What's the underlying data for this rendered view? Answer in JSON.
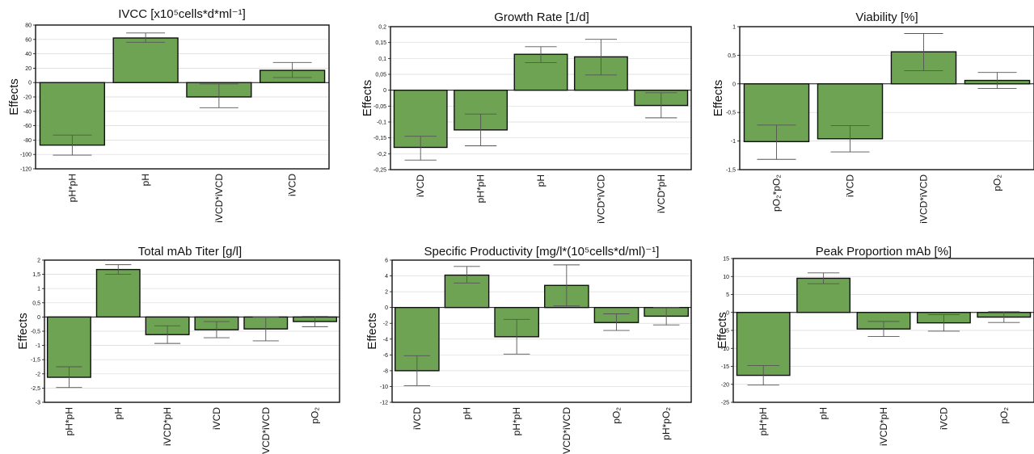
{
  "chart_data": [
    {
      "type": "bar",
      "title": "IVCC [x10⁵cells*d*ml⁻¹]",
      "ylabel": "Effects",
      "ylim": [
        -120,
        80
      ],
      "yticks": [
        80,
        60,
        40,
        20,
        0,
        -20,
        -40,
        -60,
        -80,
        -100,
        -120
      ],
      "categories": [
        "pH*pH",
        "pH",
        "iVCD*iVCD",
        "iVCD"
      ],
      "values": [
        -87,
        62,
        -20,
        17
      ],
      "error_low": [
        -101,
        56,
        -35,
        7
      ],
      "error_high": [
        -73,
        69,
        -2,
        28
      ],
      "grid": true
    },
    {
      "type": "bar",
      "title": "Growth Rate [1/d]",
      "ylabel": "Effects",
      "ylim": [
        -0.25,
        0.2
      ],
      "yticks": [
        "0,2",
        "0,15",
        "0,1",
        "0,05",
        "0",
        "-0,05",
        "-0,1",
        "-0,15",
        "-0,2",
        "-0,25"
      ],
      "categories": [
        "iVCD",
        "pH*pH",
        "pH",
        "iVCD*iVCD",
        "iVCD*pH"
      ],
      "values": [
        -0.18,
        -0.125,
        0.113,
        0.105,
        -0.048
      ],
      "error_low": [
        -0.22,
        -0.175,
        0.087,
        0.048,
        -0.087
      ],
      "error_high": [
        -0.145,
        -0.075,
        0.137,
        0.16,
        -0.008
      ],
      "grid": true
    },
    {
      "type": "bar",
      "title": "Viability [%]",
      "ylabel": "Effects",
      "ylim": [
        -1.5,
        1
      ],
      "yticks": [
        "1",
        "0,5",
        "0",
        "-0,5",
        "-1",
        "-1,5"
      ],
      "categories": [
        "pO₂*pO₂",
        "iVCD",
        "iVCD*iVCD",
        "pO₂"
      ],
      "values": [
        -1.01,
        -0.96,
        0.56,
        0.06
      ],
      "error_low": [
        -1.32,
        -1.19,
        0.23,
        -0.08
      ],
      "error_high": [
        -0.72,
        -0.73,
        0.88,
        0.2
      ],
      "grid": true
    },
    {
      "type": "bar",
      "title": "Total mAb Titer [g/l]",
      "ylabel": "Effects",
      "ylim": [
        -3,
        2
      ],
      "yticks": [
        "2",
        "1,5",
        "1",
        "0,5",
        "0",
        "-0,5",
        "-1",
        "-1,5",
        "-2",
        "-2,5",
        "-3"
      ],
      "categories": [
        "pH*pH",
        "pH",
        "iVCD*pH",
        "iVCD",
        "VCD*iVCD",
        "pO₂"
      ],
      "values": [
        -2.12,
        1.67,
        -0.62,
        -0.45,
        -0.42,
        -0.16
      ],
      "error_low": [
        -2.48,
        1.5,
        -0.93,
        -0.73,
        -0.84,
        -0.34
      ],
      "error_high": [
        -1.75,
        1.84,
        -0.31,
        -0.16,
        0.0,
        0.02
      ],
      "grid": true
    },
    {
      "type": "bar",
      "title": "Specific Productivity [mg/l*(10⁵cells*d/ml)⁻¹]",
      "ylabel": "Effects",
      "ylim": [
        -12,
        6
      ],
      "yticks": [
        "6",
        "4",
        "2",
        "0",
        "-2",
        "-4",
        "-6",
        "-8",
        "-10",
        "-12"
      ],
      "categories": [
        "iVCD",
        "pH",
        "pH*pH",
        "VCD*iVCD",
        "pO₂",
        "pH*pO₂"
      ],
      "values": [
        -8.0,
        4.1,
        -3.7,
        2.8,
        -1.9,
        -1.1
      ],
      "error_low": [
        -9.9,
        3.1,
        -5.9,
        0.2,
        -2.9,
        -2.2
      ],
      "error_high": [
        -6.1,
        5.2,
        -1.5,
        5.4,
        -0.8,
        0.0
      ],
      "grid": true
    },
    {
      "type": "bar",
      "title": "Peak Proportion mAb [%]",
      "ylabel": "Effects",
      "ylim": [
        -25,
        15
      ],
      "yticks": [
        "15",
        "10",
        "5",
        "0",
        "-5",
        "-10",
        "-15",
        "-20",
        "-25"
      ],
      "categories": [
        "pH*pH",
        "pH",
        "iVCD*pH",
        "iVCD",
        "pO₂"
      ],
      "values": [
        -17.5,
        9.5,
        -4.6,
        -2.9,
        -1.3
      ],
      "error_low": [
        -20.2,
        8.0,
        -6.7,
        -5.2,
        -2.8
      ],
      "error_high": [
        -14.8,
        11.0,
        -2.5,
        -0.6,
        0.2
      ],
      "grid": true
    }
  ],
  "colors": {
    "bar_fill": "#6ea353",
    "bar_stroke": "#111111",
    "grid": "#d9d9d9",
    "error": "#555555"
  }
}
